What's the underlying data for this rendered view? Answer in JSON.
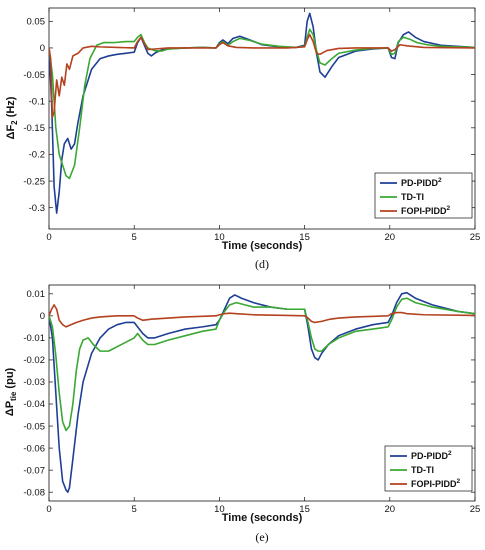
{
  "colors": {
    "pd_piddp": "#1f3f96",
    "td_ti": "#3aa832",
    "fopi": "#b5411f"
  },
  "chart_data": [
    {
      "type": "line",
      "panel_label": "(d)",
      "xlabel": "Time (seconds)",
      "ylabel_main": "ΔF",
      "ylabel_sub": "2",
      "ylabel_tail": " (Hz)",
      "xlim": [
        0,
        25
      ],
      "ylim": [
        -0.34,
        0.075
      ],
      "xticks": [
        0,
        5,
        10,
        15,
        20,
        25
      ],
      "xtick_labels": [
        "0",
        "5",
        "10",
        "15",
        "20",
        "25"
      ],
      "yticks": [
        0.05,
        0,
        -0.05,
        -0.1,
        -0.15,
        -0.2,
        -0.25,
        -0.3
      ],
      "ytick_labels": [
        "0.05",
        "0",
        "-0.05",
        "-0.1",
        "-0.15",
        "-0.2",
        "-0.25",
        "-0.3"
      ],
      "grid": false,
      "legend_position": "bottom-right",
      "series": [
        {
          "name": "PD-PIDD",
          "name_sup": "2",
          "color_key": "pd_piddp",
          "x": [
            0,
            0.15,
            0.3,
            0.45,
            0.6,
            0.75,
            0.9,
            1.1,
            1.3,
            1.5,
            1.7,
            2.0,
            2.5,
            3.0,
            3.5,
            4.0,
            4.5,
            5.0,
            5.2,
            5.4,
            5.6,
            5.8,
            6.0,
            6.3,
            6.6,
            7.0,
            8.0,
            9.0,
            9.8,
            10.0,
            10.2,
            10.5,
            10.8,
            11.2,
            11.8,
            12.5,
            13.5,
            14.5,
            15.0,
            15.15,
            15.3,
            15.5,
            15.7,
            15.9,
            16.2,
            16.6,
            17.0,
            18.0,
            19.0,
            19.9,
            20.1,
            20.3,
            20.5,
            20.8,
            21.1,
            21.5,
            22.0,
            23.0,
            25.0
          ],
          "y": [
            0,
            -0.1,
            -0.26,
            -0.31,
            -0.27,
            -0.21,
            -0.18,
            -0.17,
            -0.19,
            -0.18,
            -0.14,
            -0.09,
            -0.04,
            -0.02,
            -0.015,
            -0.012,
            -0.01,
            -0.008,
            0.01,
            0.02,
            0.005,
            -0.01,
            -0.015,
            -0.008,
            -0.004,
            -0.002,
            0,
            0.001,
            0,
            0.01,
            0.015,
            0.008,
            0.018,
            0.022,
            0.015,
            0.006,
            0.002,
            0.001,
            0.005,
            0.05,
            0.065,
            0.04,
            -0.01,
            -0.045,
            -0.055,
            -0.035,
            -0.018,
            -0.006,
            -0.002,
            0,
            -0.018,
            -0.02,
            0.01,
            0.025,
            0.03,
            0.02,
            0.012,
            0.005,
            0.001
          ]
        },
        {
          "name": "TD-TI",
          "name_sup": "",
          "color_key": "td_ti",
          "x": [
            0,
            0.2,
            0.4,
            0.6,
            0.8,
            1.0,
            1.2,
            1.5,
            1.8,
            2.1,
            2.4,
            2.8,
            3.2,
            3.8,
            4.5,
            5.0,
            5.2,
            5.4,
            5.6,
            5.8,
            6.2,
            6.6,
            7.0,
            8.0,
            9.0,
            9.8,
            10.0,
            10.2,
            10.5,
            10.8,
            11.2,
            11.8,
            12.5,
            13.5,
            14.5,
            15.0,
            15.15,
            15.3,
            15.5,
            15.7,
            15.9,
            16.2,
            16.6,
            17.0,
            18.0,
            19.0,
            19.9,
            20.1,
            20.3,
            20.5,
            20.8,
            21.2,
            21.6,
            22.2,
            23.0,
            25.0
          ],
          "y": [
            0,
            -0.05,
            -0.15,
            -0.2,
            -0.22,
            -0.24,
            -0.245,
            -0.22,
            -0.15,
            -0.07,
            -0.02,
            0.005,
            0.01,
            0.01,
            0.012,
            0.012,
            0.02,
            0.025,
            0.01,
            0.0,
            -0.005,
            -0.006,
            -0.002,
            0,
            0.001,
            0,
            0.008,
            0.012,
            0.005,
            0.012,
            0.018,
            0.014,
            0.007,
            0.003,
            0.001,
            0.003,
            0.02,
            0.035,
            0.025,
            -0.005,
            -0.028,
            -0.032,
            -0.02,
            -0.01,
            -0.004,
            -0.001,
            0,
            -0.012,
            -0.01,
            0.012,
            0.02,
            0.016,
            0.01,
            0.006,
            0.003,
            0.001
          ]
        },
        {
          "name": "FOPI-PIDD",
          "name_sup": "2",
          "color_key": "fopi",
          "x": [
            0,
            0.1,
            0.2,
            0.3,
            0.45,
            0.6,
            0.75,
            0.9,
            1.05,
            1.2,
            1.4,
            1.7,
            2.0,
            2.5,
            3.0,
            4.0,
            5.0,
            5.2,
            5.4,
            5.6,
            5.8,
            6.2,
            7.0,
            8.0,
            9.8,
            10.0,
            10.2,
            10.5,
            11.0,
            12.0,
            14.0,
            15.0,
            15.15,
            15.3,
            15.5,
            15.7,
            15.9,
            16.3,
            17.0,
            18.0,
            19.9,
            20.1,
            20.3,
            20.6,
            21.0,
            22.0,
            25.0
          ],
          "y": [
            0,
            -0.02,
            -0.13,
            -0.12,
            -0.06,
            -0.09,
            -0.055,
            -0.07,
            -0.03,
            -0.04,
            -0.015,
            -0.01,
            0,
            0.003,
            0.002,
            0.001,
            0,
            0.012,
            0.02,
            0.008,
            -0.003,
            -0.002,
            0,
            0,
            0,
            0.006,
            0.01,
            0.004,
            0.001,
            0,
            0,
            0.002,
            0.015,
            0.025,
            0.012,
            -0.01,
            -0.012,
            -0.005,
            -0.001,
            0,
            0,
            -0.006,
            -0.003,
            0.006,
            0.004,
            0.001,
            0
          ]
        }
      ]
    },
    {
      "type": "line",
      "panel_label": "(e)",
      "xlabel": "Time (seconds)",
      "ylabel_main": "ΔP",
      "ylabel_sub": "tie",
      "ylabel_tail": " (pu)",
      "xlim": [
        0,
        25
      ],
      "ylim": [
        -0.084,
        0.014
      ],
      "xticks": [
        0,
        5,
        10,
        15,
        20,
        25
      ],
      "xtick_labels": [
        "0",
        "5",
        "10",
        "15",
        "20",
        "25"
      ],
      "yticks": [
        0.01,
        0,
        -0.01,
        -0.02,
        -0.03,
        -0.04,
        -0.05,
        -0.06,
        -0.07,
        -0.08
      ],
      "ytick_labels": [
        "0.01",
        "0",
        "-0.01",
        "-0.02",
        "-0.03",
        "-0.04",
        "-0.05",
        "-0.06",
        "-0.07",
        "-0.08"
      ],
      "grid": false,
      "legend_position": "bottom-right",
      "series": [
        {
          "name": "PD-PIDD",
          "name_sup": "2",
          "color_key": "pd_piddp",
          "x": [
            0,
            0.2,
            0.4,
            0.6,
            0.8,
            1.0,
            1.1,
            1.2,
            1.4,
            1.7,
            2.0,
            2.5,
            3.0,
            3.5,
            4.0,
            4.5,
            5.0,
            5.2,
            5.5,
            5.8,
            6.2,
            7.0,
            8.0,
            9.0,
            9.8,
            10.0,
            10.3,
            10.6,
            10.9,
            11.3,
            12.0,
            13.0,
            14.0,
            15.0,
            15.2,
            15.4,
            15.6,
            15.8,
            16.0,
            16.4,
            17.0,
            18.0,
            19.0,
            19.9,
            20.1,
            20.4,
            20.7,
            21.0,
            21.5,
            22.5,
            24.0,
            25.0
          ],
          "y": [
            0,
            -0.01,
            -0.035,
            -0.06,
            -0.075,
            -0.079,
            -0.08,
            -0.078,
            -0.065,
            -0.045,
            -0.03,
            -0.017,
            -0.01,
            -0.006,
            -0.004,
            -0.003,
            -0.003,
            -0.005,
            -0.008,
            -0.01,
            -0.01,
            -0.008,
            -0.006,
            -0.005,
            -0.004,
            -0.002,
            0.003,
            0.008,
            0.0095,
            0.008,
            0.006,
            0.004,
            0.003,
            0.003,
            -0.005,
            -0.015,
            -0.019,
            -0.02,
            -0.017,
            -0.013,
            -0.009,
            -0.006,
            -0.004,
            -0.003,
            0.0,
            0.006,
            0.01,
            0.0105,
            0.008,
            0.005,
            0.002,
            0.001
          ]
        },
        {
          "name": "TD-TI",
          "name_sup": "",
          "color_key": "td_ti",
          "x": [
            0,
            0.2,
            0.4,
            0.6,
            0.8,
            1.0,
            1.2,
            1.4,
            1.6,
            1.8,
            2.0,
            2.3,
            2.6,
            3.0,
            3.5,
            4.0,
            4.5,
            5.0,
            5.2,
            5.5,
            5.8,
            6.2,
            7.0,
            8.0,
            9.0,
            9.8,
            10.0,
            10.3,
            10.6,
            11.0,
            11.5,
            12.0,
            13.0,
            14.0,
            15.0,
            15.2,
            15.4,
            15.6,
            15.8,
            16.0,
            16.4,
            17.0,
            18.0,
            19.0,
            19.9,
            20.1,
            20.4,
            20.7,
            21.0,
            21.5,
            22.5,
            24.0,
            25.0
          ],
          "y": [
            0,
            -0.005,
            -0.018,
            -0.035,
            -0.048,
            -0.052,
            -0.05,
            -0.04,
            -0.025,
            -0.015,
            -0.011,
            -0.01,
            -0.013,
            -0.016,
            -0.016,
            -0.014,
            -0.012,
            -0.01,
            -0.008,
            -0.011,
            -0.013,
            -0.013,
            -0.011,
            -0.009,
            -0.007,
            -0.006,
            -0.002,
            0.002,
            0.005,
            0.006,
            0.005,
            0.004,
            0.004,
            0.003,
            0.003,
            -0.003,
            -0.01,
            -0.015,
            -0.016,
            -0.016,
            -0.013,
            -0.01,
            -0.007,
            -0.006,
            -0.005,
            -0.002,
            0.004,
            0.0075,
            0.008,
            0.006,
            0.004,
            0.002,
            0.001
          ]
        },
        {
          "name": "FOPI-PIDD",
          "name_sup": "2",
          "color_key": "fopi",
          "x": [
            0,
            0.15,
            0.3,
            0.45,
            0.6,
            0.8,
            1.0,
            1.3,
            1.6,
            2.0,
            2.5,
            3.0,
            4.0,
            5.0,
            5.2,
            5.5,
            6.0,
            7.0,
            8.0,
            9.8,
            10.0,
            10.3,
            10.6,
            11.0,
            12.0,
            14.0,
            15.0,
            15.2,
            15.4,
            15.6,
            16.0,
            16.5,
            17.0,
            18.0,
            19.9,
            20.1,
            20.4,
            20.7,
            21.0,
            22.0,
            25.0
          ],
          "y": [
            0,
            0.003,
            0.005,
            0.003,
            -0.002,
            -0.004,
            -0.005,
            -0.004,
            -0.003,
            -0.002,
            -0.001,
            -0.0005,
            0,
            0,
            -0.001,
            -0.002,
            -0.0015,
            -0.001,
            -0.0005,
            0,
            0.0005,
            0.001,
            0.0012,
            0.001,
            0.0005,
            0.0002,
            0,
            -0.001,
            -0.0025,
            -0.003,
            -0.0025,
            -0.0015,
            -0.001,
            -0.0005,
            0,
            0.001,
            0.0015,
            0.0015,
            0.001,
            0.0005,
            0.0002
          ]
        }
      ]
    }
  ]
}
